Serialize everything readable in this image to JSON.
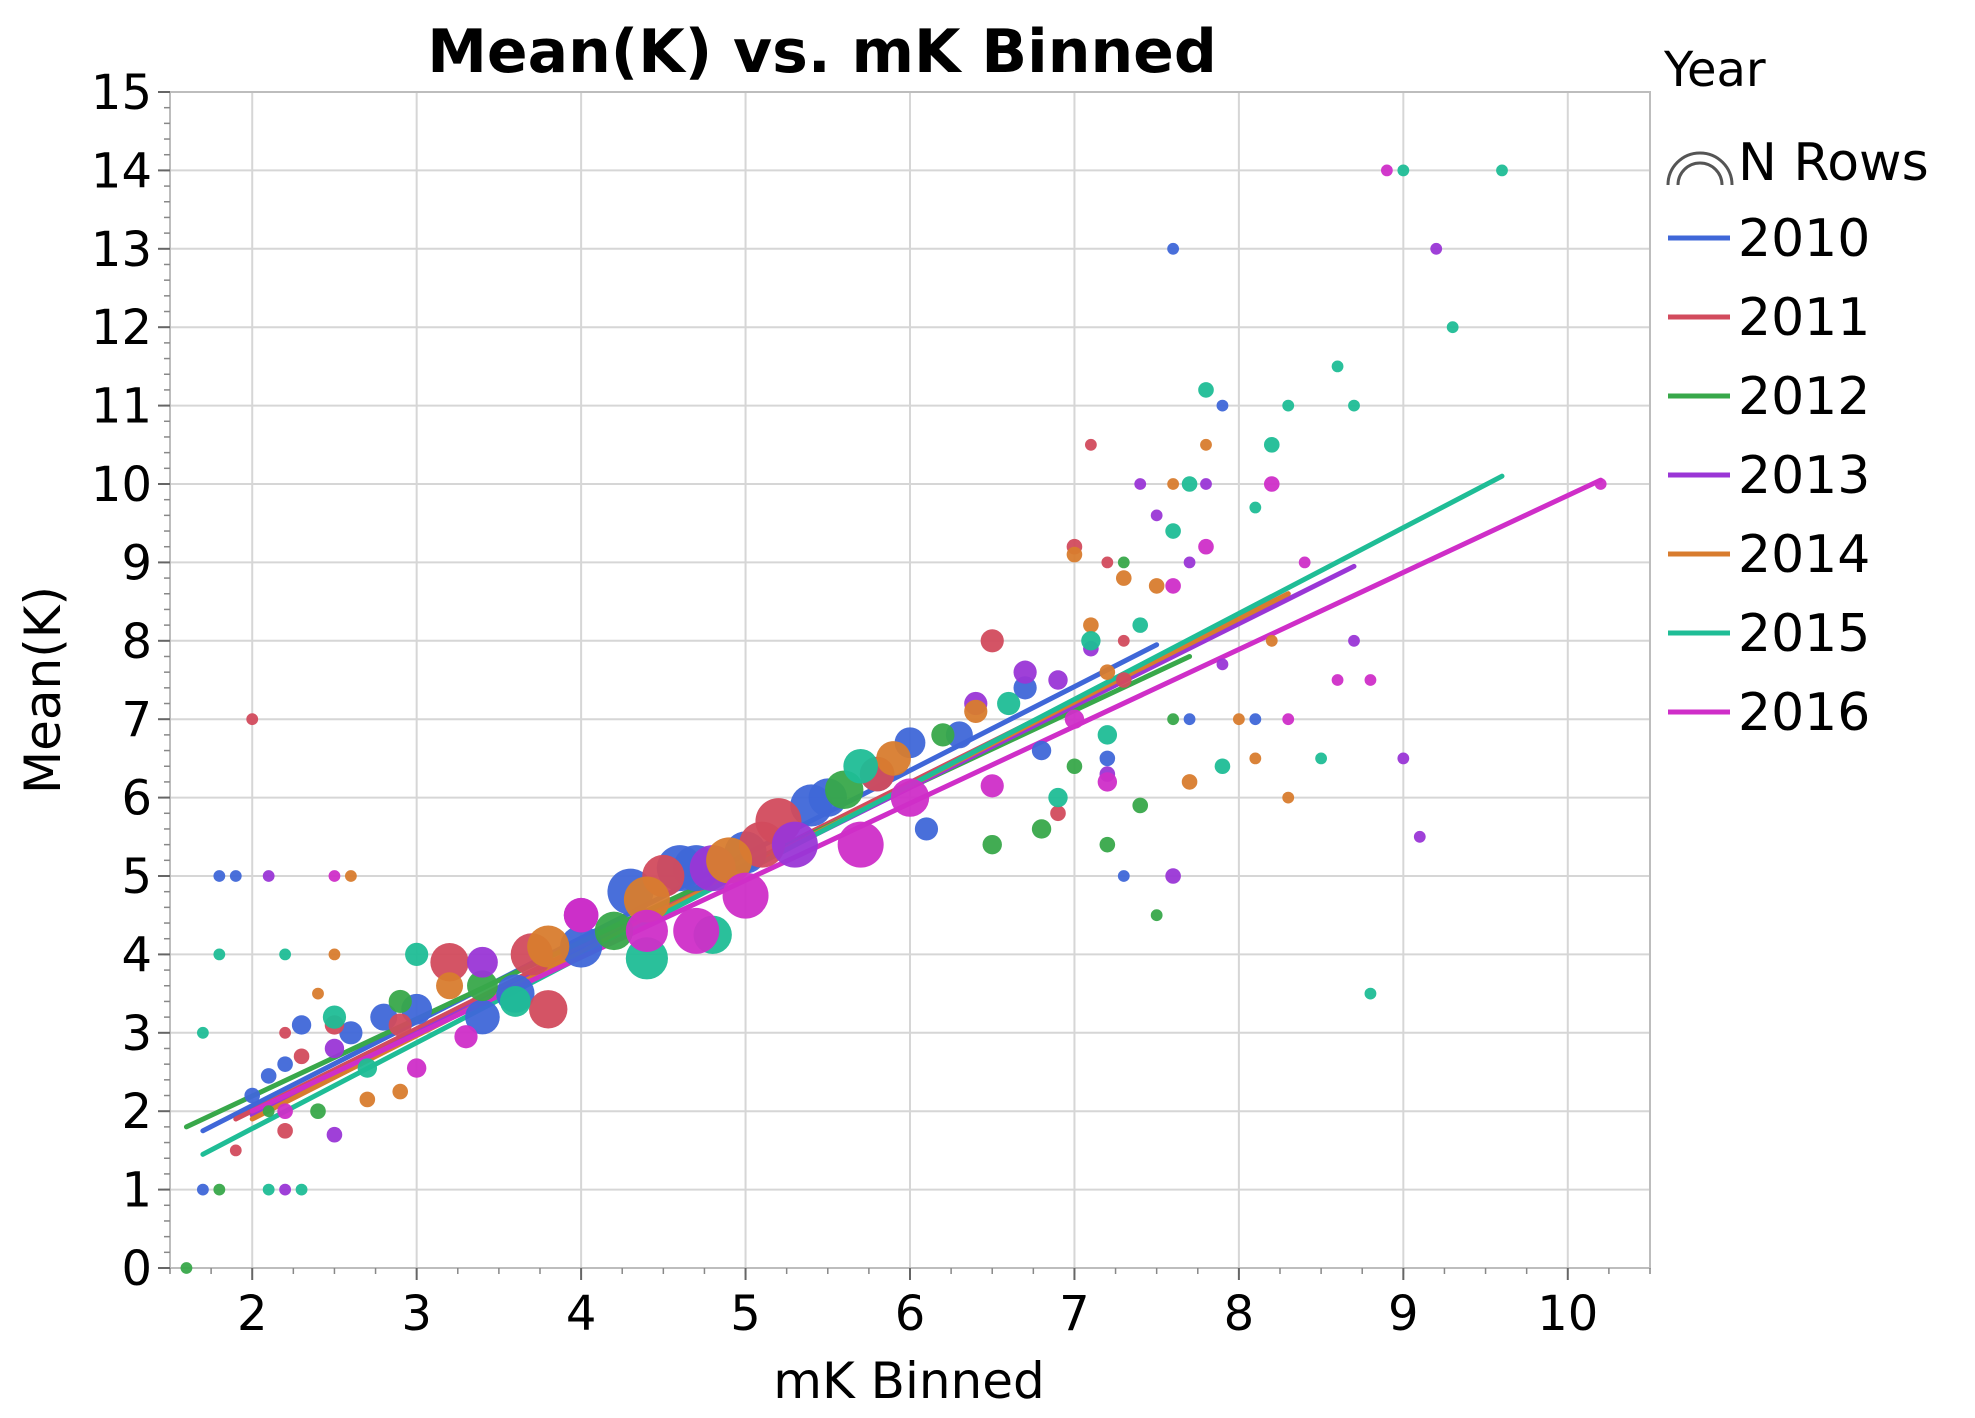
{
  "chart_data": {
    "type": "scatter",
    "title": "Mean(K) vs. mK Binned",
    "xlabel": "mK Binned",
    "ylabel": "Mean(K)",
    "xlim": [
      1.5,
      10.5
    ],
    "ylim": [
      0,
      15
    ],
    "x_ticks": [
      2,
      3,
      4,
      5,
      6,
      7,
      8,
      9,
      10
    ],
    "y_ticks": [
      0,
      1,
      2,
      3,
      4,
      5,
      6,
      7,
      8,
      9,
      10,
      11,
      12,
      13,
      14,
      15
    ],
    "x_minor_step": 0.25,
    "y_minor_step": 0.2,
    "grid": true,
    "legend": {
      "title": "Year",
      "size_label": "N Rows",
      "position": "right"
    },
    "series": [
      {
        "name": "2010",
        "color": "#3f67d8",
        "fit": {
          "x": [
            1.7,
            7.5
          ],
          "y": [
            1.75,
            7.95
          ]
        },
        "points": [
          {
            "x": 1.7,
            "y": 1.0,
            "n": 1
          },
          {
            "x": 1.8,
            "y": 5.0,
            "n": 1
          },
          {
            "x": 1.9,
            "y": 5.0,
            "n": 1
          },
          {
            "x": 2.0,
            "y": 2.2,
            "n": 2
          },
          {
            "x": 2.1,
            "y": 2.45,
            "n": 2
          },
          {
            "x": 2.2,
            "y": 2.6,
            "n": 2
          },
          {
            "x": 2.3,
            "y": 3.1,
            "n": 3
          },
          {
            "x": 2.6,
            "y": 3.0,
            "n": 4
          },
          {
            "x": 2.8,
            "y": 3.2,
            "n": 5
          },
          {
            "x": 3.0,
            "y": 3.3,
            "n": 6
          },
          {
            "x": 3.4,
            "y": 3.2,
            "n": 7
          },
          {
            "x": 3.6,
            "y": 3.5,
            "n": 8
          },
          {
            "x": 4.0,
            "y": 4.1,
            "n": 9
          },
          {
            "x": 4.3,
            "y": 4.8,
            "n": 10
          },
          {
            "x": 4.6,
            "y": 5.1,
            "n": 10
          },
          {
            "x": 4.7,
            "y": 5.1,
            "n": 10
          },
          {
            "x": 5.0,
            "y": 5.3,
            "n": 9
          },
          {
            "x": 5.4,
            "y": 5.9,
            "n": 9
          },
          {
            "x": 5.5,
            "y": 6.0,
            "n": 8
          },
          {
            "x": 5.8,
            "y": 6.3,
            "n": 7
          },
          {
            "x": 6.0,
            "y": 6.7,
            "n": 6
          },
          {
            "x": 6.1,
            "y": 5.6,
            "n": 4
          },
          {
            "x": 6.3,
            "y": 6.8,
            "n": 5
          },
          {
            "x": 6.7,
            "y": 7.4,
            "n": 4
          },
          {
            "x": 6.8,
            "y": 6.6,
            "n": 3
          },
          {
            "x": 7.2,
            "y": 6.5,
            "n": 2
          },
          {
            "x": 7.3,
            "y": 5.0,
            "n": 1
          },
          {
            "x": 7.6,
            "y": 13.0,
            "n": 1
          },
          {
            "x": 7.7,
            "y": 7.0,
            "n": 1
          },
          {
            "x": 7.9,
            "y": 11.0,
            "n": 1
          },
          {
            "x": 8.1,
            "y": 7.0,
            "n": 1
          }
        ]
      },
      {
        "name": "2011",
        "color": "#d24b5d",
        "fit": {
          "x": [
            1.9,
            8.3
          ],
          "y": [
            1.9,
            8.6
          ]
        },
        "points": [
          {
            "x": 1.9,
            "y": 1.5,
            "n": 1
          },
          {
            "x": 2.0,
            "y": 7.0,
            "n": 1
          },
          {
            "x": 2.2,
            "y": 1.75,
            "n": 2
          },
          {
            "x": 2.2,
            "y": 3.0,
            "n": 1
          },
          {
            "x": 2.3,
            "y": 2.7,
            "n": 2
          },
          {
            "x": 2.5,
            "y": 3.1,
            "n": 3
          },
          {
            "x": 2.9,
            "y": 3.1,
            "n": 4
          },
          {
            "x": 3.2,
            "y": 3.9,
            "n": 8
          },
          {
            "x": 3.7,
            "y": 4.0,
            "n": 9
          },
          {
            "x": 3.8,
            "y": 3.3,
            "n": 8
          },
          {
            "x": 4.5,
            "y": 5.0,
            "n": 9
          },
          {
            "x": 5.1,
            "y": 5.4,
            "n": 10
          },
          {
            "x": 5.2,
            "y": 5.7,
            "n": 10
          },
          {
            "x": 5.8,
            "y": 6.3,
            "n": 7
          },
          {
            "x": 6.5,
            "y": 8.0,
            "n": 4
          },
          {
            "x": 6.9,
            "y": 5.8,
            "n": 2
          },
          {
            "x": 7.0,
            "y": 9.2,
            "n": 2
          },
          {
            "x": 7.1,
            "y": 10.5,
            "n": 1
          },
          {
            "x": 7.2,
            "y": 9.0,
            "n": 1
          },
          {
            "x": 7.3,
            "y": 8.0,
            "n": 1
          },
          {
            "x": 7.3,
            "y": 7.5,
            "n": 2
          }
        ]
      },
      {
        "name": "2012",
        "color": "#38a84a",
        "fit": {
          "x": [
            1.6,
            7.7
          ],
          "y": [
            1.8,
            7.8
          ]
        },
        "points": [
          {
            "x": 1.6,
            "y": 0.0,
            "n": 1
          },
          {
            "x": 1.8,
            "y": 1.0,
            "n": 1
          },
          {
            "x": 2.1,
            "y": 2.0,
            "n": 1
          },
          {
            "x": 2.4,
            "y": 2.0,
            "n": 2
          },
          {
            "x": 2.9,
            "y": 3.4,
            "n": 4
          },
          {
            "x": 3.4,
            "y": 3.6,
            "n": 6
          },
          {
            "x": 4.2,
            "y": 4.3,
            "n": 8
          },
          {
            "x": 5.6,
            "y": 6.1,
            "n": 8
          },
          {
            "x": 6.2,
            "y": 6.8,
            "n": 4
          },
          {
            "x": 6.5,
            "y": 5.4,
            "n": 3
          },
          {
            "x": 6.8,
            "y": 5.6,
            "n": 3
          },
          {
            "x": 7.0,
            "y": 6.4,
            "n": 2
          },
          {
            "x": 7.2,
            "y": 5.4,
            "n": 2
          },
          {
            "x": 7.3,
            "y": 9.0,
            "n": 1
          },
          {
            "x": 7.4,
            "y": 5.9,
            "n": 2
          },
          {
            "x": 7.5,
            "y": 4.5,
            "n": 1
          },
          {
            "x": 7.6,
            "y": 7.0,
            "n": 1
          }
        ]
      },
      {
        "name": "2013",
        "color": "#9a36d6",
        "fit": {
          "x": [
            2.0,
            8.7
          ],
          "y": [
            1.95,
            8.95
          ]
        },
        "points": [
          {
            "x": 2.1,
            "y": 5.0,
            "n": 1
          },
          {
            "x": 2.2,
            "y": 1.0,
            "n": 1
          },
          {
            "x": 2.5,
            "y": 1.7,
            "n": 2
          },
          {
            "x": 2.5,
            "y": 2.8,
            "n": 3
          },
          {
            "x": 3.4,
            "y": 3.9,
            "n": 6
          },
          {
            "x": 4.0,
            "y": 4.5,
            "n": 7
          },
          {
            "x": 4.8,
            "y": 5.1,
            "n": 10
          },
          {
            "x": 5.3,
            "y": 5.4,
            "n": 10
          },
          {
            "x": 6.4,
            "y": 7.2,
            "n": 4
          },
          {
            "x": 6.7,
            "y": 7.6,
            "n": 4
          },
          {
            "x": 6.9,
            "y": 7.5,
            "n": 3
          },
          {
            "x": 7.1,
            "y": 7.9,
            "n": 2
          },
          {
            "x": 7.2,
            "y": 6.3,
            "n": 2
          },
          {
            "x": 7.4,
            "y": 10.0,
            "n": 1
          },
          {
            "x": 7.5,
            "y": 9.6,
            "n": 1
          },
          {
            "x": 7.6,
            "y": 5.0,
            "n": 2
          },
          {
            "x": 7.7,
            "y": 9.0,
            "n": 1
          },
          {
            "x": 7.8,
            "y": 10.0,
            "n": 1
          },
          {
            "x": 7.9,
            "y": 7.7,
            "n": 1
          },
          {
            "x": 8.7,
            "y": 8.0,
            "n": 1
          },
          {
            "x": 9.0,
            "y": 6.5,
            "n": 1
          },
          {
            "x": 9.1,
            "y": 5.5,
            "n": 1
          },
          {
            "x": 9.2,
            "y": 13.0,
            "n": 1
          }
        ]
      },
      {
        "name": "2014",
        "color": "#d87c2e",
        "fit": {
          "x": [
            2.0,
            8.3
          ],
          "y": [
            1.9,
            8.6
          ]
        },
        "points": [
          {
            "x": 2.4,
            "y": 3.5,
            "n": 1
          },
          {
            "x": 2.5,
            "y": 4.0,
            "n": 1
          },
          {
            "x": 2.6,
            "y": 5.0,
            "n": 1
          },
          {
            "x": 2.7,
            "y": 2.15,
            "n": 2
          },
          {
            "x": 2.9,
            "y": 2.25,
            "n": 2
          },
          {
            "x": 3.2,
            "y": 3.6,
            "n": 5
          },
          {
            "x": 3.8,
            "y": 4.1,
            "n": 9
          },
          {
            "x": 4.4,
            "y": 4.7,
            "n": 10
          },
          {
            "x": 4.9,
            "y": 5.2,
            "n": 10
          },
          {
            "x": 5.9,
            "y": 6.5,
            "n": 7
          },
          {
            "x": 6.4,
            "y": 7.1,
            "n": 4
          },
          {
            "x": 7.0,
            "y": 9.1,
            "n": 2
          },
          {
            "x": 7.1,
            "y": 8.2,
            "n": 2
          },
          {
            "x": 7.2,
            "y": 7.6,
            "n": 2
          },
          {
            "x": 7.3,
            "y": 8.8,
            "n": 2
          },
          {
            "x": 7.5,
            "y": 8.7,
            "n": 2
          },
          {
            "x": 7.6,
            "y": 10.0,
            "n": 1
          },
          {
            "x": 7.7,
            "y": 6.2,
            "n": 2
          },
          {
            "x": 7.8,
            "y": 10.5,
            "n": 1
          },
          {
            "x": 8.0,
            "y": 7.0,
            "n": 1
          },
          {
            "x": 8.1,
            "y": 6.5,
            "n": 1
          },
          {
            "x": 8.2,
            "y": 8.0,
            "n": 1
          },
          {
            "x": 8.3,
            "y": 6.0,
            "n": 1
          }
        ]
      },
      {
        "name": "2015",
        "color": "#1fbd96",
        "fit": {
          "x": [
            1.7,
            9.6
          ],
          "y": [
            1.45,
            10.1
          ]
        },
        "points": [
          {
            "x": 1.7,
            "y": 3.0,
            "n": 1
          },
          {
            "x": 1.8,
            "y": 4.0,
            "n": 1
          },
          {
            "x": 2.1,
            "y": 1.0,
            "n": 1
          },
          {
            "x": 2.2,
            "y": 4.0,
            "n": 1
          },
          {
            "x": 2.3,
            "y": 1.0,
            "n": 1
          },
          {
            "x": 2.5,
            "y": 3.2,
            "n": 4
          },
          {
            "x": 2.7,
            "y": 2.55,
            "n": 3
          },
          {
            "x": 3.0,
            "y": 4.0,
            "n": 4
          },
          {
            "x": 3.6,
            "y": 3.4,
            "n": 6
          },
          {
            "x": 4.4,
            "y": 3.95,
            "n": 9
          },
          {
            "x": 4.8,
            "y": 4.25,
            "n": 8
          },
          {
            "x": 5.7,
            "y": 6.4,
            "n": 7
          },
          {
            "x": 6.6,
            "y": 7.2,
            "n": 4
          },
          {
            "x": 6.9,
            "y": 6.0,
            "n": 3
          },
          {
            "x": 7.1,
            "y": 8.0,
            "n": 3
          },
          {
            "x": 7.2,
            "y": 6.8,
            "n": 3
          },
          {
            "x": 7.4,
            "y": 8.2,
            "n": 2
          },
          {
            "x": 7.6,
            "y": 9.4,
            "n": 2
          },
          {
            "x": 7.7,
            "y": 10.0,
            "n": 2
          },
          {
            "x": 7.8,
            "y": 11.2,
            "n": 2
          },
          {
            "x": 7.9,
            "y": 6.4,
            "n": 2
          },
          {
            "x": 8.1,
            "y": 9.7,
            "n": 1
          },
          {
            "x": 8.2,
            "y": 10.5,
            "n": 2
          },
          {
            "x": 8.3,
            "y": 11.0,
            "n": 1
          },
          {
            "x": 8.5,
            "y": 6.5,
            "n": 1
          },
          {
            "x": 8.6,
            "y": 11.5,
            "n": 1
          },
          {
            "x": 8.7,
            "y": 11.0,
            "n": 1
          },
          {
            "x": 8.8,
            "y": 3.5,
            "n": 1
          },
          {
            "x": 9.0,
            "y": 14.0,
            "n": 1
          },
          {
            "x": 9.3,
            "y": 12.0,
            "n": 1
          },
          {
            "x": 9.6,
            "y": 14.0,
            "n": 1
          }
        ]
      },
      {
        "name": "2016",
        "color": "#cf2ec8",
        "fit": {
          "x": [
            2.0,
            10.2
          ],
          "y": [
            2.0,
            10.05
          ]
        },
        "points": [
          {
            "x": 2.2,
            "y": 2.0,
            "n": 2
          },
          {
            "x": 2.5,
            "y": 5.0,
            "n": 1
          },
          {
            "x": 3.0,
            "y": 2.55,
            "n": 3
          },
          {
            "x": 3.3,
            "y": 2.95,
            "n": 4
          },
          {
            "x": 4.0,
            "y": 4.5,
            "n": 7
          },
          {
            "x": 4.4,
            "y": 4.3,
            "n": 9
          },
          {
            "x": 4.7,
            "y": 4.3,
            "n": 10
          },
          {
            "x": 5.0,
            "y": 4.75,
            "n": 10
          },
          {
            "x": 5.7,
            "y": 5.4,
            "n": 10
          },
          {
            "x": 6.0,
            "y": 6.0,
            "n": 8
          },
          {
            "x": 6.5,
            "y": 6.15,
            "n": 4
          },
          {
            "x": 7.0,
            "y": 7.0,
            "n": 3
          },
          {
            "x": 7.2,
            "y": 6.2,
            "n": 3
          },
          {
            "x": 7.6,
            "y": 8.7,
            "n": 2
          },
          {
            "x": 7.8,
            "y": 9.2,
            "n": 2
          },
          {
            "x": 8.2,
            "y": 10.0,
            "n": 2
          },
          {
            "x": 8.3,
            "y": 7.0,
            "n": 1
          },
          {
            "x": 8.4,
            "y": 9.0,
            "n": 1
          },
          {
            "x": 8.6,
            "y": 7.5,
            "n": 1
          },
          {
            "x": 8.8,
            "y": 7.5,
            "n": 1
          },
          {
            "x": 8.9,
            "y": 14.0,
            "n": 1
          },
          {
            "x": 10.2,
            "y": 10.0,
            "n": 1
          }
        ]
      }
    ]
  }
}
